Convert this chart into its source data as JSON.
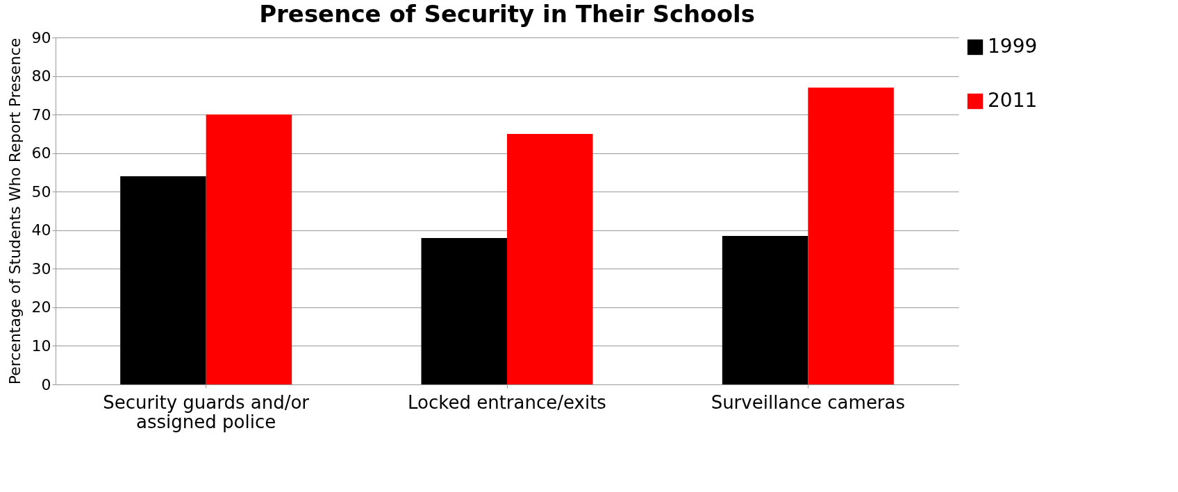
{
  "chart_data": {
    "type": "bar",
    "title": "Presence of Security in Their Schools",
    "categories": [
      "Security guards and/or assigned police",
      "Locked entrance/exits",
      "Surveillance cameras"
    ],
    "series": [
      {
        "name": "1999",
        "color": "#000000",
        "values": [
          54,
          38,
          38.5
        ]
      },
      {
        "name": "2011",
        "color": "#ff0000",
        "values": [
          70,
          65,
          77
        ]
      }
    ],
    "ylabel": "Percentage of Students Who Report Presence",
    "ylim": [
      0,
      90
    ],
    "yticks": [
      0,
      10,
      20,
      30,
      40,
      50,
      60,
      70,
      80,
      90
    ],
    "grid": "y",
    "legend": "right"
  }
}
